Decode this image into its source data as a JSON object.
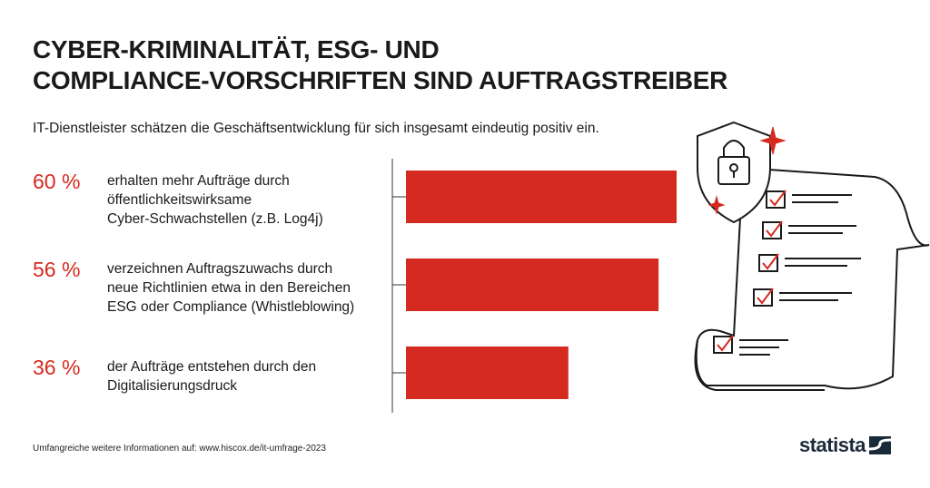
{
  "title_lines": [
    "CYBER-KRIMINALITÄT, ESG- UND",
    "COMPLIANCE-VORSCHRIFTEN SIND AUFTRAGSTREIBER"
  ],
  "subtitle": "IT-Dienstleister schätzen die Geschäftsentwicklung für sich insgesamt eindeutig positiv ein.",
  "chart_data": {
    "type": "bar",
    "orientation": "horizontal",
    "categories": [
      "erhalten mehr Aufträge durch öffentlichkeitswirksame Cyber-Schwachstellen (z.B. Log4j)",
      "verzeichnen Auftragszuwachs durch neue Richtlinien etwa in den Bereichen ESG oder Compliance (Whistleblowing)",
      "der Aufträge entstehen durch den Digitalisierungsdruck"
    ],
    "category_lines": [
      [
        "erhalten mehr Aufträge durch",
        "öffentlichkeitswirksame",
        "Cyber-Schwachstellen (z.B. Log4j)"
      ],
      [
        "verzeichnen Auftragszuwachs durch",
        "neue Richtlinien etwa in den Bereichen",
        "ESG oder Compliance (Whistleblowing)"
      ],
      [
        "der Aufträge entstehen durch den",
        "Digitalisierungsdruck"
      ]
    ],
    "values": [
      60,
      56,
      36
    ],
    "value_labels": [
      "60 %",
      "56 %",
      "36 %"
    ],
    "unit": "%",
    "bar_color": "#d52a1f",
    "accent_color": "#d52a1f"
  },
  "footer": "Umfangreiche weitere Informationen auf: www.hiscox.de/it-umfrage-2023",
  "logo": "statista"
}
